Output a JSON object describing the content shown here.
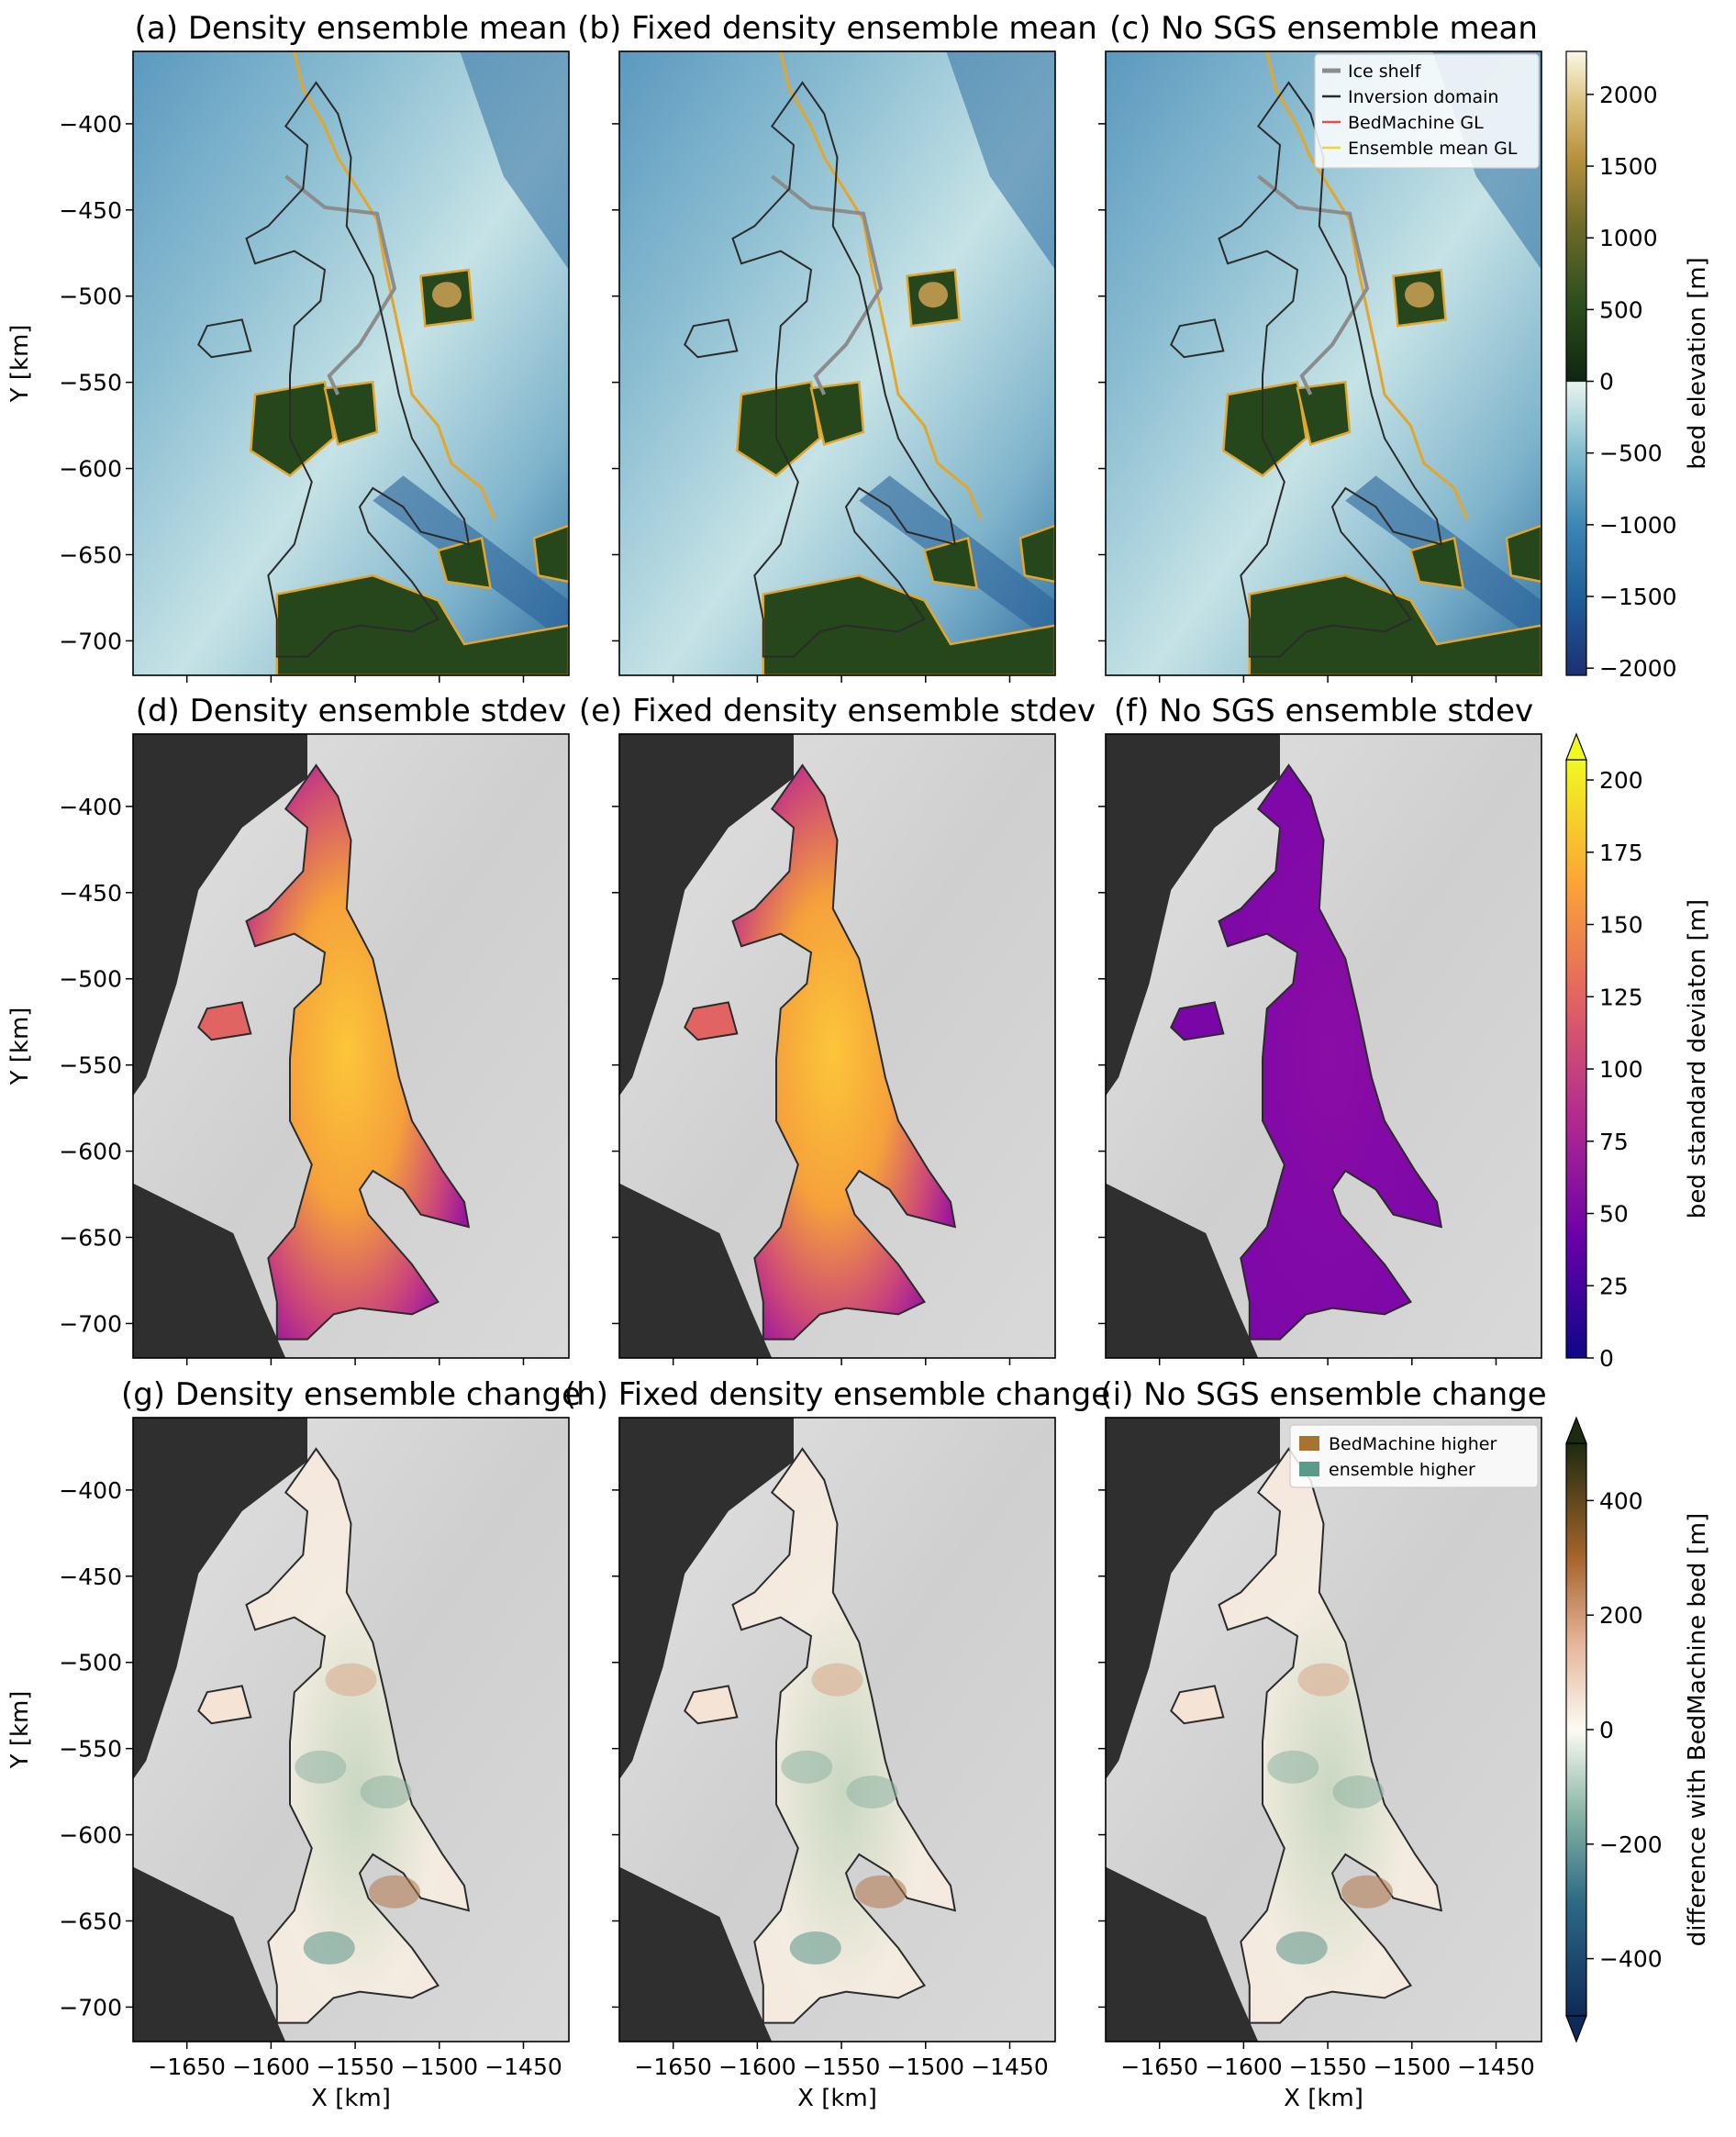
{
  "chart_data": {
    "type": "heatmap",
    "layout": "3x3 grid of maps with one colorbar per row",
    "xlabel": "X [km]",
    "ylabel": "Y [km]",
    "x_ticks": [
      -1650,
      -1600,
      -1550,
      -1500,
      -1450
    ],
    "y_ticks": [
      -400,
      -450,
      -500,
      -550,
      -600,
      -650,
      -700
    ],
    "xlim": [
      -1682,
      -1423
    ],
    "ylim": [
      -720,
      -358
    ],
    "panels": [
      {
        "id": "a",
        "title": "(a) Density ensemble mean",
        "kind": "mean"
      },
      {
        "id": "b",
        "title": "(b) Fixed density ensemble mean",
        "kind": "mean"
      },
      {
        "id": "c",
        "title": "(c) No SGS ensemble mean",
        "kind": "mean"
      },
      {
        "id": "d",
        "title": "(d) Density ensemble stdev",
        "kind": "stdev",
        "level": "high"
      },
      {
        "id": "e",
        "title": "(e) Fixed density ensemble stdev",
        "kind": "stdev",
        "level": "high"
      },
      {
        "id": "f",
        "title": "(f) No SGS ensemble stdev",
        "kind": "stdev",
        "level": "low"
      },
      {
        "id": "g",
        "title": "(g) Density ensemble change",
        "kind": "change"
      },
      {
        "id": "h",
        "title": "(h) Fixed density ensemble change",
        "kind": "change"
      },
      {
        "id": "i",
        "title": "(i) No SGS ensemble change",
        "kind": "change"
      }
    ],
    "colorbars": [
      {
        "label": "bed elevation [m]",
        "ticks": [
          2000,
          1500,
          1000,
          500,
          0,
          -500,
          -1000,
          -1500,
          -2000
        ],
        "range": [
          -2050,
          2300
        ],
        "extend": "none"
      },
      {
        "label": "bed standard deviaton [m]",
        "ticks": [
          200,
          175,
          150,
          125,
          100,
          75,
          50,
          25,
          0
        ],
        "range": [
          0,
          207
        ],
        "extend": "max"
      },
      {
        "label": "difference with BedMachine bed [m]",
        "ticks": [
          400,
          200,
          0,
          -200,
          -400
        ],
        "range": [
          -500,
          500
        ],
        "extend": "both"
      }
    ],
    "legend_mean": {
      "placement": "top-right of panel (c)",
      "entries": [
        {
          "label": "Ice shelf",
          "color": "#8c8c8c"
        },
        {
          "label": "Inversion domain",
          "color": "#2b2b2b"
        },
        {
          "label": "BedMachine GL",
          "color": "#e0504a"
        },
        {
          "label": "Ensemble mean GL",
          "color": "#f0d23a"
        }
      ]
    },
    "legend_change": {
      "placement": "top-right of panel (i)",
      "entries": [
        {
          "label": "BedMachine higher",
          "color": "#a6742f"
        },
        {
          "label": "ensemble higher",
          "color": "#5a9a88"
        }
      ]
    }
  }
}
